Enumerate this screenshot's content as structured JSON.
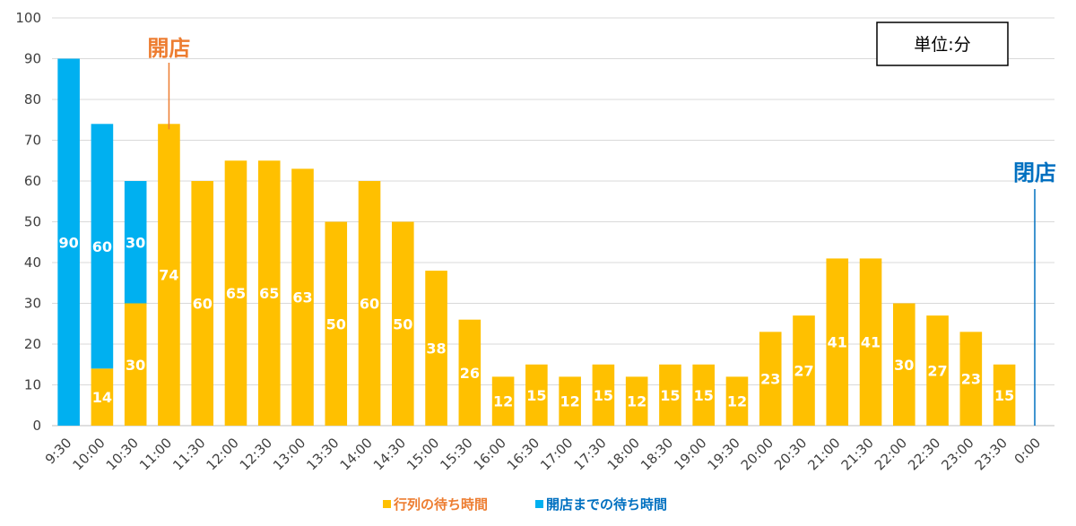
{
  "chart_data": {
    "type": "bar",
    "stacked": true,
    "categories": [
      "9:30",
      "10:00",
      "10:30",
      "11:00",
      "11:30",
      "12:00",
      "12:30",
      "13:00",
      "13:30",
      "14:00",
      "14:30",
      "15:00",
      "15:30",
      "16:00",
      "16:30",
      "17:00",
      "17:30",
      "18:00",
      "18:30",
      "19:00",
      "19:30",
      "20:00",
      "20:30",
      "21:00",
      "21:30",
      "22:00",
      "22:30",
      "23:00",
      "23:30",
      "0:00"
    ],
    "series": [
      {
        "name": "行列の待ち時間",
        "color": "#FFC000",
        "values": [
          0,
          14,
          30,
          74,
          60,
          65,
          65,
          63,
          50,
          60,
          50,
          38,
          26,
          12,
          15,
          12,
          15,
          12,
          15,
          15,
          12,
          23,
          27,
          41,
          41,
          30,
          27,
          23,
          15,
          0
        ],
        "labels": [
          "",
          "14",
          "30",
          "74",
          "60",
          "65",
          "65",
          "63",
          "50",
          "60",
          "50",
          "38",
          "26",
          "12",
          "15",
          "12",
          "15",
          "12",
          "15",
          "15",
          "12",
          "23",
          "27",
          "41",
          "41",
          "30",
          "27",
          "23",
          "15",
          ""
        ]
      },
      {
        "name": "開店までの待ち時間",
        "color": "#00B0F0",
        "values": [
          90,
          60,
          30,
          0,
          0,
          0,
          0,
          0,
          0,
          0,
          0,
          0,
          0,
          0,
          0,
          0,
          0,
          0,
          0,
          0,
          0,
          0,
          0,
          0,
          0,
          0,
          0,
          0,
          0,
          0
        ],
        "labels": [
          "90",
          "60",
          "30",
          "",
          "",
          "",
          "",
          "",
          "",
          "",
          "",
          "",
          "",
          "",
          "",
          "",
          "",
          "",
          "",
          "",
          "",
          "",
          "",
          "",
          "",
          "",
          "",
          "",
          "",
          ""
        ]
      }
    ],
    "ylim": [
      0,
      100
    ],
    "yticks": [
      0,
      10,
      20,
      30,
      40,
      50,
      60,
      70,
      80,
      90,
      100
    ],
    "grid": true,
    "legend": "bottom-center",
    "annotations": [
      {
        "text": "開店",
        "category": "11:00",
        "color": "#ED7D31"
      },
      {
        "text": "閉店",
        "category": "0:00",
        "color": "#0070C0"
      }
    ],
    "unit_box": "単位:分"
  }
}
